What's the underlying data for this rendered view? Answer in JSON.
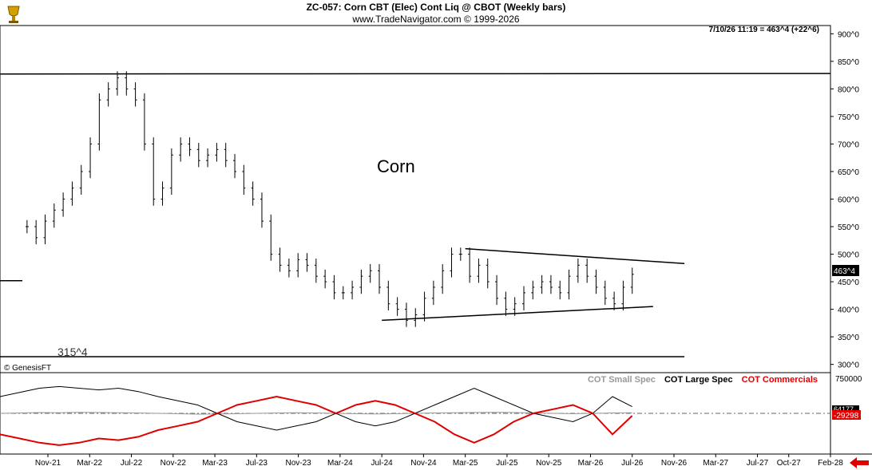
{
  "header": {
    "title": "ZC-057:  Corn CBT (Elec) Cont Liq @ CBOT  (Weekly bars)",
    "subtitle": "www.TradeNavigator.com © 1999-2026"
  },
  "readout": "7/10/26 11:19 = 463^4 (+22^6)",
  "copyright": "© GenesisFT",
  "colors": {
    "price": "#000000",
    "small_spec": "#999999",
    "large_spec": "#000000",
    "commercials": "#e00000",
    "arrow": "#e00000"
  },
  "icons": {
    "logo": "trading-cup-icon",
    "nav": "left-arrow-icon"
  },
  "chart_data": [
    {
      "type": "ohlc",
      "title": "Corn",
      "y_ticks": [
        "900^0",
        "850^0",
        "800^0",
        "750^0",
        "700^0",
        "650^0",
        "600^0",
        "550^0",
        "500^0",
        "450^0",
        "400^0",
        "350^0",
        "300^0"
      ],
      "ylim": [
        285,
        915
      ],
      "last_price_label": "463^4",
      "level_label": "315^4",
      "x_ticks": [
        "Nov-21",
        "Mar-22",
        "Jul-22",
        "Nov-22",
        "Mar-23",
        "Jul-23",
        "Nov-23",
        "Mar-24",
        "Jul-24",
        "Nov-24",
        "Mar-25",
        "Jul-25",
        "Nov-25",
        "Mar-26",
        "Jul-26",
        "Nov-26",
        "Mar-27",
        "Jul-27",
        "Oct-27",
        "Feb-28"
      ],
      "weekly_closes_approx": [
        550,
        530,
        560,
        580,
        600,
        620,
        650,
        700,
        780,
        800,
        820,
        800,
        780,
        700,
        600,
        620,
        680,
        700,
        690,
        670,
        680,
        690,
        670,
        650,
        620,
        600,
        560,
        500,
        480,
        470,
        490,
        480,
        460,
        450,
        430,
        430,
        440,
        460,
        470,
        440,
        410,
        400,
        380,
        390,
        420,
        440,
        470,
        500,
        500,
        460,
        480,
        450,
        420,
        400,
        410,
        430,
        440,
        450,
        440,
        430,
        460,
        480,
        460,
        440,
        420,
        410,
        440,
        463.5
      ],
      "lines": [
        {
          "name": "resistance",
          "points": [
            [
              "Nov-20",
              827
            ],
            [
              "Feb-28",
              828
            ]
          ]
        },
        {
          "name": "support",
          "points": [
            [
              "Nov-20",
              314
            ],
            [
              "Dec-26",
              314
            ]
          ]
        },
        {
          "name": "triangle-top",
          "points": [
            [
              "Mar-25",
              510
            ],
            [
              "Dec-26",
              483
            ]
          ]
        },
        {
          "name": "triangle-bottom",
          "points": [
            [
              "Jul-24",
              380
            ],
            [
              "Sep-26",
              405
            ]
          ]
        }
      ]
    },
    {
      "type": "line",
      "y_ticks": [
        "750000"
      ],
      "value_labels": [
        "64177",
        "-29298"
      ],
      "series": [
        {
          "name": "COT Small Spec",
          "values": [
            0,
            5,
            10,
            8,
            12,
            10,
            8,
            5,
            0,
            -5,
            -10,
            -8,
            -5,
            0,
            5,
            8,
            5,
            0,
            -5,
            -8,
            -5,
            0,
            5,
            8,
            10,
            12,
            10,
            5,
            0,
            -5,
            0,
            5,
            8
          ]
        },
        {
          "name": "COT Large Spec",
          "values": [
            200,
            250,
            300,
            320,
            300,
            280,
            300,
            260,
            200,
            150,
            100,
            0,
            -100,
            -150,
            -200,
            -150,
            -100,
            0,
            -100,
            -150,
            -100,
            0,
            100,
            200,
            300,
            200,
            100,
            0,
            -50,
            -100,
            0,
            200,
            80
          ]
        },
        {
          "name": "COT Commercials",
          "values": [
            -250,
            -300,
            -350,
            -380,
            -350,
            -300,
            -320,
            -280,
            -200,
            -150,
            -100,
            0,
            100,
            150,
            200,
            150,
            100,
            0,
            100,
            150,
            100,
            0,
            -100,
            -250,
            -350,
            -250,
            -100,
            0,
            50,
            100,
            0,
            -250,
            -29
          ]
        }
      ]
    }
  ]
}
